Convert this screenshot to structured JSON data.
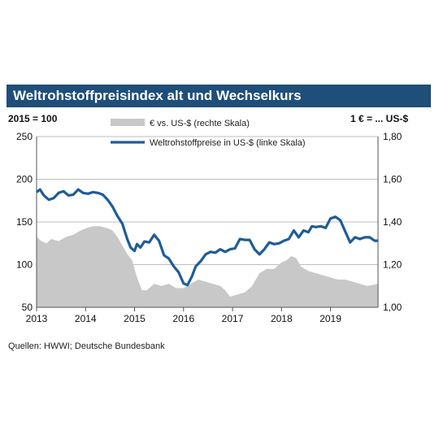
{
  "header": {
    "title": "Weltrohstoffpreisindex alt und Wechselkurs"
  },
  "units": {
    "left": "2015 = 100",
    "right": "1 € = ... US-$"
  },
  "source": "Quellen: HWWI; Deutsche Bundesbank",
  "colors": {
    "title_bg": "#1f4e79",
    "line": "#1f5c99",
    "area": "#c8c8c8"
  },
  "chart_data": {
    "type": "line",
    "title": "Weltrohstoffpreisindex alt und Wechselkurs",
    "xlabel": "",
    "ylabel_left": "2015 = 100",
    "ylabel_right": "1 € = ... US-$",
    "x_ticks": [
      "2013",
      "2014",
      "2015",
      "2016",
      "2017",
      "2018",
      "2019"
    ],
    "y_left_ticks": [
      "250",
      "200",
      "150",
      "100",
      "50"
    ],
    "y_right_ticks": [
      "1,80",
      "1,60",
      "1,40",
      "1,20",
      "1,00"
    ],
    "ylim_left": [
      50,
      250
    ],
    "ylim_right": [
      1.0,
      1.8
    ],
    "xlim": [
      2013.0,
      2019.97
    ],
    "grid": "horizontal",
    "legend_position": "top",
    "series": [
      {
        "name": "€ vs. US-$ (rechte Skala)",
        "type": "area",
        "axis": "right",
        "x": [
          2013.0,
          2013.1,
          2013.2,
          2013.3,
          2013.45,
          2013.6,
          2013.75,
          2013.9,
          2014.0,
          2014.15,
          2014.3,
          2014.45,
          2014.55,
          2014.65,
          2014.75,
          2014.85,
          2014.95,
          2015.05,
          2015.15,
          2015.25,
          2015.4,
          2015.55,
          2015.7,
          2015.85,
          2016.0,
          2016.15,
          2016.3,
          2016.45,
          2016.6,
          2016.75,
          2016.85,
          2016.95,
          2017.1,
          2017.25,
          2017.4,
          2017.55,
          2017.7,
          2017.85,
          2018.0,
          2018.1,
          2018.2,
          2018.3,
          2018.4,
          2018.55,
          2018.7,
          2018.85,
          2019.0,
          2019.15,
          2019.3,
          2019.45,
          2019.6,
          2019.75,
          2019.97
        ],
        "values": [
          1.33,
          1.31,
          1.3,
          1.32,
          1.31,
          1.33,
          1.34,
          1.36,
          1.37,
          1.38,
          1.38,
          1.37,
          1.36,
          1.33,
          1.29,
          1.25,
          1.22,
          1.14,
          1.08,
          1.08,
          1.11,
          1.1,
          1.11,
          1.09,
          1.09,
          1.11,
          1.13,
          1.12,
          1.11,
          1.1,
          1.08,
          1.05,
          1.06,
          1.07,
          1.1,
          1.16,
          1.18,
          1.18,
          1.21,
          1.22,
          1.24,
          1.23,
          1.19,
          1.17,
          1.16,
          1.15,
          1.14,
          1.13,
          1.13,
          1.12,
          1.11,
          1.1,
          1.11
        ]
      },
      {
        "name": "Weltrohstoffpreise in US-$ (linke Skala)",
        "type": "line",
        "axis": "left",
        "x": [
          2013.0,
          2013.07,
          2013.15,
          2013.25,
          2013.35,
          2013.45,
          2013.55,
          2013.65,
          2013.75,
          2013.85,
          2013.95,
          2014.05,
          2014.15,
          2014.25,
          2014.35,
          2014.45,
          2014.55,
          2014.65,
          2014.75,
          2014.85,
          2014.92,
          2015.0,
          2015.05,
          2015.12,
          2015.2,
          2015.3,
          2015.4,
          2015.5,
          2015.6,
          2015.7,
          2015.8,
          2015.9,
          2016.0,
          2016.08,
          2016.17,
          2016.25,
          2016.35,
          2016.45,
          2016.55,
          2016.65,
          2016.75,
          2016.85,
          2016.95,
          2017.05,
          2017.15,
          2017.25,
          2017.35,
          2017.45,
          2017.55,
          2017.65,
          2017.75,
          2017.85,
          2017.95,
          2018.05,
          2018.15,
          2018.25,
          2018.35,
          2018.45,
          2018.55,
          2018.62,
          2018.7,
          2018.8,
          2018.9,
          2019.0,
          2019.1,
          2019.2,
          2019.3,
          2019.4,
          2019.5,
          2019.6,
          2019.7,
          2019.8,
          2019.9,
          2019.97
        ],
        "values": [
          185,
          188,
          181,
          176,
          178,
          184,
          186,
          181,
          182,
          188,
          184,
          183,
          185,
          184,
          182,
          176,
          168,
          157,
          148,
          130,
          120,
          116,
          124,
          120,
          127,
          126,
          135,
          128,
          111,
          107,
          98,
          91,
          78,
          76,
          86,
          98,
          104,
          112,
          115,
          114,
          118,
          115,
          118,
          119,
          130,
          129,
          129,
          118,
          112,
          118,
          126,
          124,
          125,
          128,
          130,
          140,
          132,
          140,
          138,
          145,
          144,
          145,
          143,
          154,
          156,
          152,
          139,
          126,
          132,
          130,
          132,
          132,
          128,
          128
        ]
      }
    ]
  }
}
